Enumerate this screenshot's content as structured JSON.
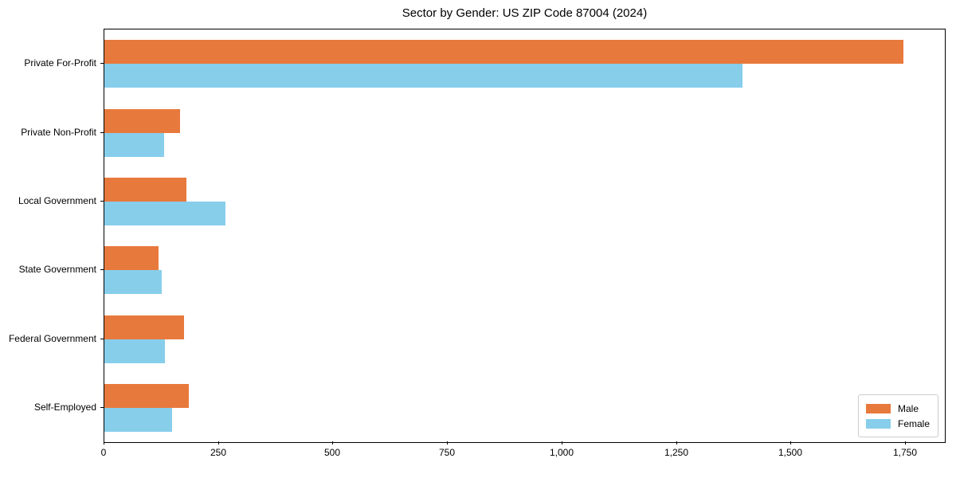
{
  "chart_data": {
    "type": "bar",
    "orientation": "horizontal",
    "title": "Sector by Gender: US ZIP Code 87004 (2024)",
    "categories": [
      "Private For-Profit",
      "Private Non-Profit",
      "Local Government",
      "State Government",
      "Federal Government",
      "Self-Employed"
    ],
    "series": [
      {
        "name": "Male",
        "color": "#e8793c",
        "values": [
          1745,
          165,
          179,
          118,
          174,
          184
        ]
      },
      {
        "name": "Female",
        "color": "#87ceeb",
        "values": [
          1394,
          130,
          264,
          125,
          132,
          148
        ]
      }
    ],
    "xlabel": "",
    "ylabel": "",
    "xlim": [
      0,
      1835
    ],
    "xticks": [
      0,
      250,
      500,
      750,
      1000,
      1250,
      1500,
      1750
    ],
    "xtick_labels": [
      "0",
      "250",
      "500",
      "750",
      "1,000",
      "1,250",
      "1,500",
      "1,750"
    ],
    "legend_position": "lower right",
    "legend_labels": [
      "Male",
      "Female"
    ],
    "grid": false,
    "background_color": "#ffffff",
    "spine_color": "#000000"
  }
}
